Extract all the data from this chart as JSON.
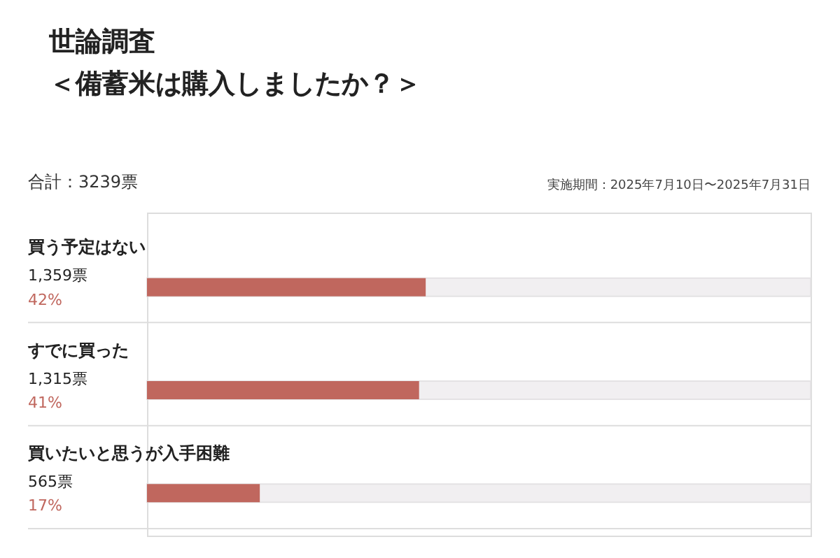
{
  "chart_data": {
    "type": "bar",
    "orientation": "horizontal",
    "title": "世論調査",
    "subtitle": "＜備蓄米は購入しましたか？＞",
    "categories": [
      "買う予定はない",
      "すでに買った",
      "買いたいと思うが入手困難"
    ],
    "series": [
      {
        "color": "#c0675e",
        "values": [
          42,
          41,
          17
        ],
        "value_labels": [
          "42%",
          "41%",
          "17%"
        ]
      }
    ],
    "xlim": [
      0,
      100
    ],
    "tick_labels": false,
    "annotations": [
      "合計：3239票",
      "実施期間：2025年7月10日〜2025年7月31日",
      "1,359票",
      "1,315票",
      "565票"
    ]
  }
}
